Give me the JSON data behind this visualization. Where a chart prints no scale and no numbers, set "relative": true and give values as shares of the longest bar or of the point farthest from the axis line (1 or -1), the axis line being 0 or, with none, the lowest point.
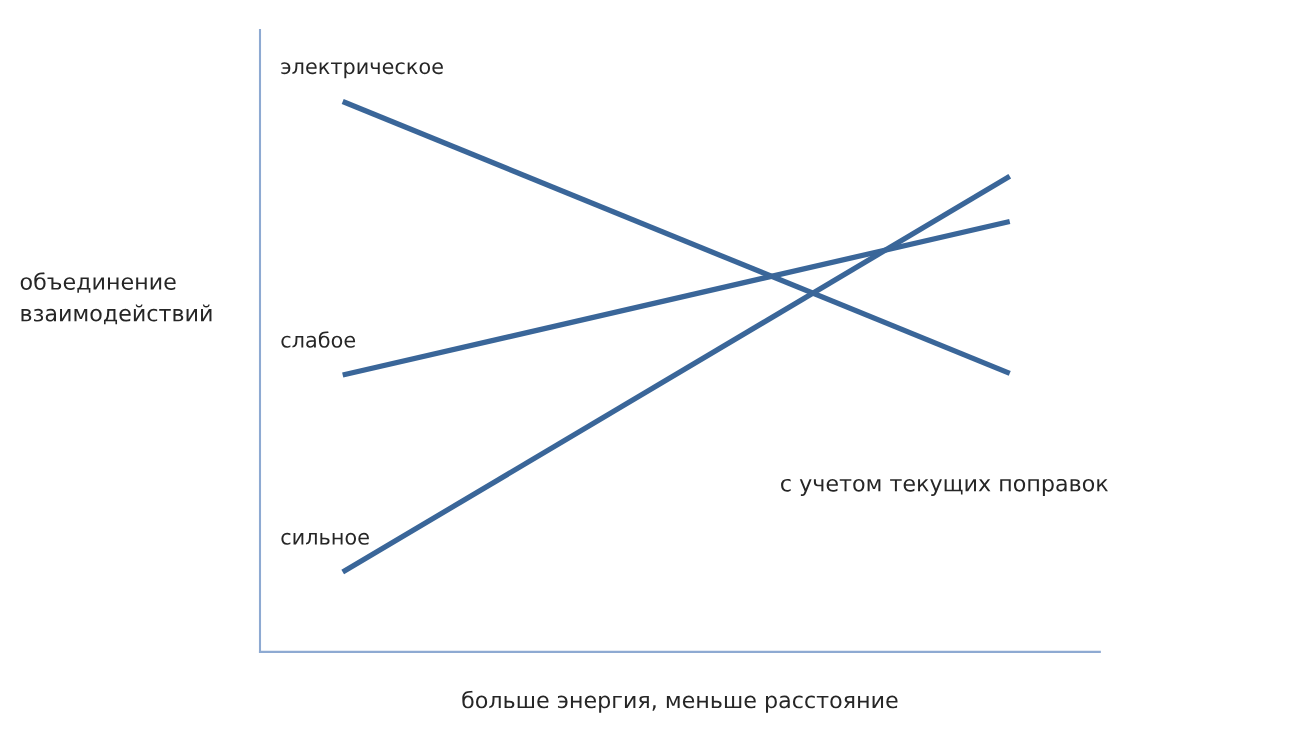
{
  "chart_data": {
    "type": "line",
    "relative": true,
    "xlabel": "больше энергия, меньше расстояние",
    "ylabel": "объединение\nвзаимодействий",
    "categories": [
      null,
      null
    ],
    "series": [
      {
        "name": "электрическое",
        "color": "#3a6699",
        "values": [
          1,
          0.506
        ]
      },
      {
        "name": "слабое",
        "color": "#3a6699",
        "values": [
          0.503,
          0.782
        ]
      },
      {
        "name": "сильное",
        "color": "#3a6699",
        "values": [
          0.145,
          0.864
        ]
      }
    ],
    "annotations": [
      "с учетом текущих поправок"
    ],
    "marker": "none",
    "line_style": "solid"
  }
}
